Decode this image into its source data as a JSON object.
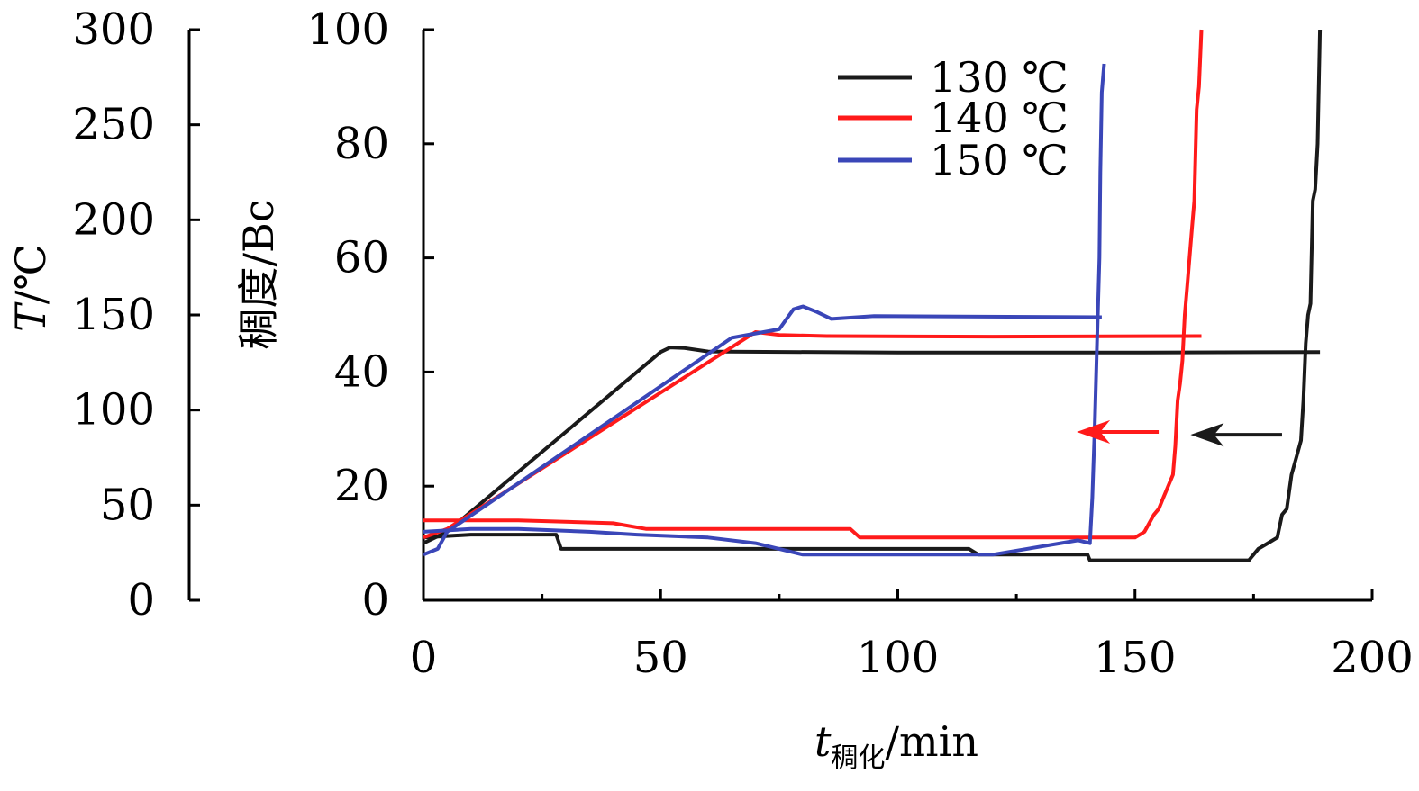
{
  "chart_data": {
    "type": "line",
    "x_axis": {
      "label_main": "t",
      "label_sub": "稠化",
      "label_unit": "/min",
      "range": [
        0,
        200
      ],
      "ticks": [
        "0",
        "50",
        "100",
        "150",
        "200"
      ],
      "tick_values": [
        0,
        50,
        100,
        150,
        200
      ],
      "minor_tick_values": [
        25,
        75,
        125,
        175
      ]
    },
    "y_axis_temperature": {
      "label_italic": "T",
      "label_unit": "/℃",
      "range": [
        0,
        300
      ],
      "ticks": [
        "0",
        "50",
        "100",
        "150",
        "200",
        "250",
        "300"
      ],
      "tick_values": [
        0,
        50,
        100,
        150,
        200,
        250,
        300
      ]
    },
    "y_axis_consistency": {
      "label": "稠度/Bc",
      "range": [
        0,
        100
      ],
      "ticks": [
        "0",
        "20",
        "40",
        "60",
        "80",
        "100"
      ],
      "tick_values": [
        0,
        20,
        40,
        60,
        80,
        100
      ]
    },
    "legend_position": "top-right",
    "series": [
      {
        "name": "130 ℃",
        "color": "#1a1a1a",
        "temperature_curve": [
          [
            0,
            10
          ],
          [
            5,
            12
          ],
          [
            50,
            43.5
          ],
          [
            52,
            44.3
          ],
          [
            55,
            44.2
          ],
          [
            60,
            43.6
          ],
          [
            100,
            43.4
          ],
          [
            150,
            43.4
          ],
          [
            189,
            43.5
          ]
        ],
        "consistency_curve": [
          [
            0,
            11
          ],
          [
            10,
            11.5
          ],
          [
            28,
            11.5
          ],
          [
            29,
            9
          ],
          [
            70,
            9
          ],
          [
            115,
            9
          ],
          [
            117,
            8
          ],
          [
            140,
            8
          ],
          [
            140.5,
            7
          ],
          [
            174,
            7
          ],
          [
            176,
            9
          ],
          [
            178,
            10
          ],
          [
            180,
            11
          ],
          [
            181,
            15
          ],
          [
            182,
            16
          ],
          [
            183,
            22
          ],
          [
            184,
            25
          ],
          [
            185,
            28
          ],
          [
            185.5,
            35
          ],
          [
            186,
            45
          ],
          [
            186.5,
            50
          ],
          [
            187,
            52
          ],
          [
            187.5,
            70
          ],
          [
            188,
            72
          ],
          [
            188.5,
            80
          ],
          [
            189,
            100
          ]
        ]
      },
      {
        "name": "140 ℃",
        "color": "#ff1a1a",
        "temperature_curve": [
          [
            0,
            11
          ],
          [
            5,
            12.5
          ],
          [
            70,
            47
          ],
          [
            75,
            46.5
          ],
          [
            85,
            46.3
          ],
          [
            120,
            46.2
          ],
          [
            164,
            46.3
          ]
        ],
        "consistency_curve": [
          [
            0,
            14
          ],
          [
            20,
            14
          ],
          [
            40,
            13.5
          ],
          [
            47,
            12.5
          ],
          [
            90,
            12.5
          ],
          [
            92,
            11
          ],
          [
            140,
            11
          ],
          [
            150,
            11
          ],
          [
            152,
            12
          ],
          [
            154,
            15
          ],
          [
            155,
            16
          ],
          [
            156,
            18
          ],
          [
            157,
            20
          ],
          [
            158,
            22
          ],
          [
            158.5,
            27
          ],
          [
            159,
            35
          ],
          [
            159.5,
            38
          ],
          [
            160,
            42
          ],
          [
            160.5,
            50
          ],
          [
            161,
            55
          ],
          [
            161.5,
            60
          ],
          [
            162,
            65
          ],
          [
            162.5,
            70
          ],
          [
            163,
            86
          ],
          [
            163.5,
            90
          ],
          [
            164,
            100
          ]
        ]
      },
      {
        "name": "150 ℃",
        "color": "#3a46b8",
        "temperature_curve": [
          [
            0,
            8
          ],
          [
            3,
            9
          ],
          [
            5,
            12
          ],
          [
            65,
            46
          ],
          [
            75,
            47.5
          ],
          [
            78,
            51
          ],
          [
            80,
            51.5
          ],
          [
            83,
            50.5
          ],
          [
            86,
            49.3
          ],
          [
            95,
            49.8
          ],
          [
            143,
            49.6
          ]
        ],
        "consistency_curve": [
          [
            0,
            12
          ],
          [
            10,
            12.5
          ],
          [
            20,
            12.5
          ],
          [
            35,
            12
          ],
          [
            45,
            11.5
          ],
          [
            60,
            11
          ],
          [
            70,
            10
          ],
          [
            80,
            8
          ],
          [
            120,
            8
          ],
          [
            138,
            10.5
          ],
          [
            140.5,
            10
          ],
          [
            141,
            18
          ],
          [
            141.5,
            30
          ],
          [
            142,
            45
          ],
          [
            142.5,
            60
          ],
          [
            142.7,
            75
          ],
          [
            143,
            89
          ],
          [
            143.5,
            94
          ]
        ]
      }
    ],
    "annotations": [
      {
        "type": "arrow",
        "color": "#ff1a1a",
        "from": [
          155,
          29.5
        ],
        "to": [
          138,
          29.5
        ]
      },
      {
        "type": "arrow",
        "color": "#1a1a1a",
        "from": [
          181,
          29
        ],
        "to": [
          162,
          29
        ]
      }
    ]
  }
}
